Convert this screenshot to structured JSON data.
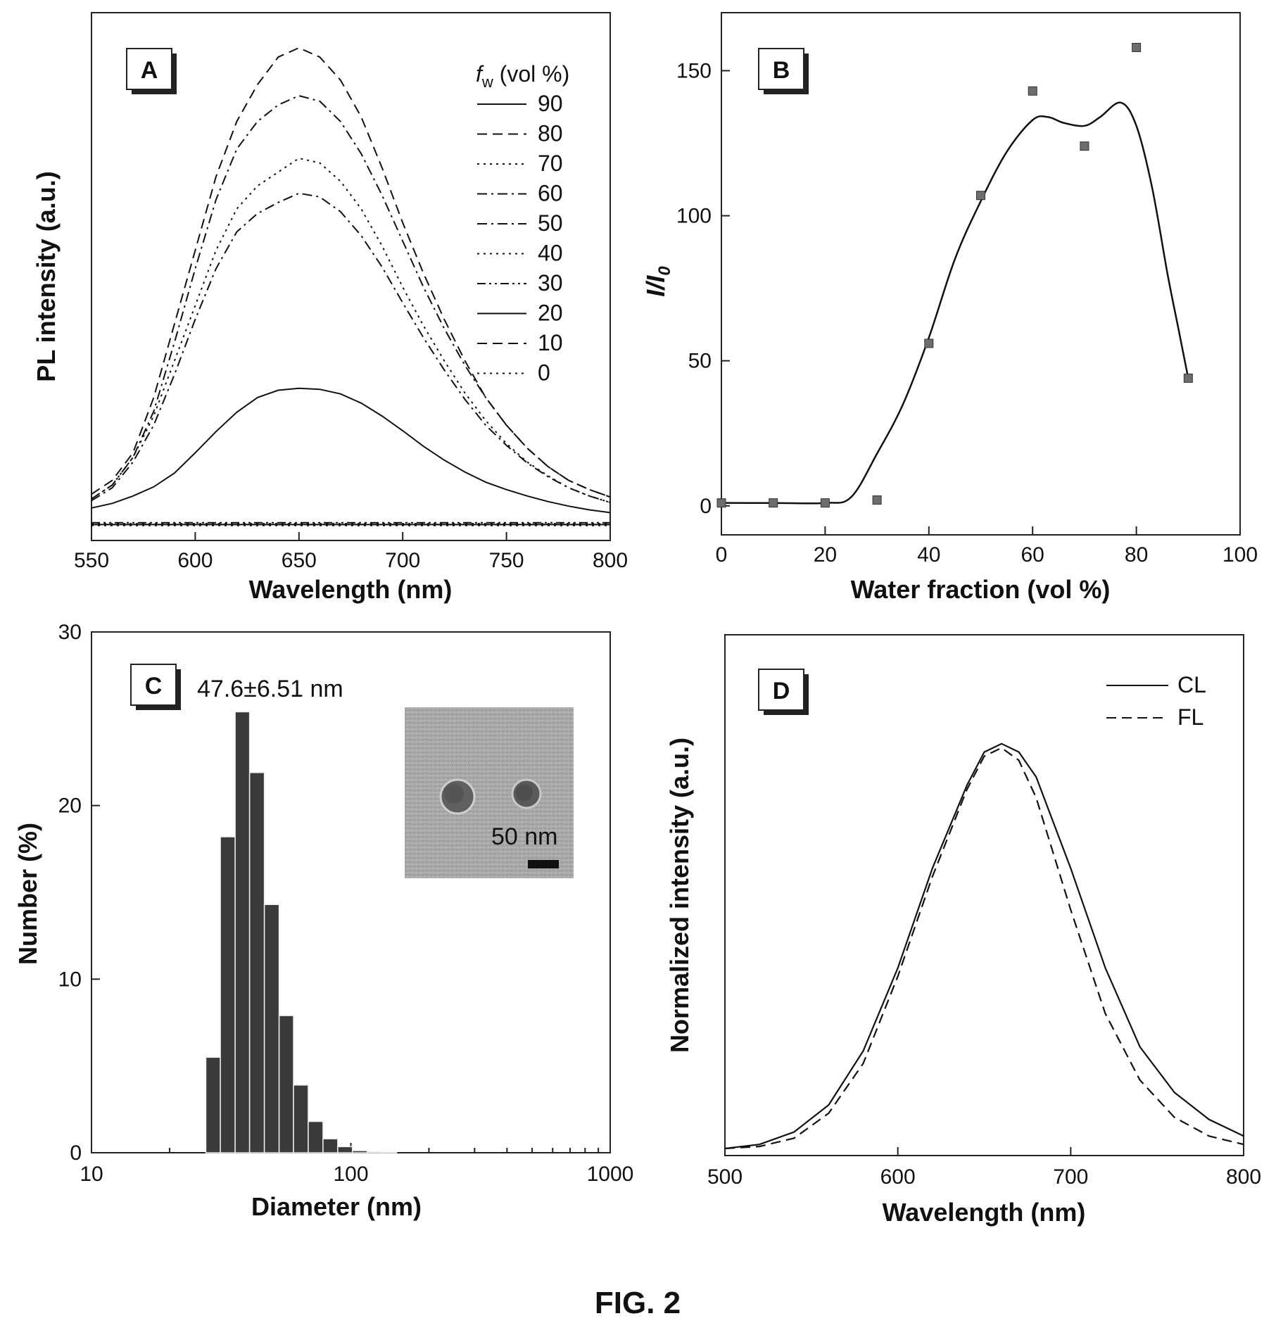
{
  "figure_caption": "FIG. 2",
  "chart_data": [
    {
      "panel": "A",
      "type": "line",
      "xlabel": "Wavelength (nm)",
      "ylabel": "PL intensity (a.u.)",
      "xlim": [
        550,
        800
      ],
      "xticks": [
        "550",
        "600",
        "650",
        "700",
        "750",
        "800"
      ],
      "legend_title": "f_w (vol %)",
      "legend_title_parts": {
        "f": "f",
        "sub": "w",
        "rest": " (vol %)"
      },
      "legend_position": "top-right",
      "x": [
        550,
        560,
        570,
        580,
        590,
        600,
        610,
        620,
        630,
        640,
        650,
        660,
        670,
        680,
        690,
        700,
        710,
        720,
        730,
        740,
        750,
        760,
        770,
        780,
        790,
        800
      ],
      "series": [
        {
          "name": "90",
          "style": "solid",
          "values": [
            0.02,
            0.025,
            0.033,
            0.043,
            0.058,
            0.08,
            0.103,
            0.124,
            0.14,
            0.148,
            0.15,
            0.149,
            0.144,
            0.134,
            0.12,
            0.104,
            0.087,
            0.072,
            0.059,
            0.048,
            0.04,
            0.033,
            0.027,
            0.022,
            0.018,
            0.015
          ]
        },
        {
          "name": "80",
          "style": "dashed",
          "values": [
            0.035,
            0.05,
            0.08,
            0.14,
            0.22,
            0.3,
            0.38,
            0.44,
            0.48,
            0.51,
            0.52,
            0.51,
            0.485,
            0.445,
            0.39,
            0.33,
            0.275,
            0.225,
            0.18,
            0.14,
            0.11,
            0.085,
            0.065,
            0.05,
            0.04,
            0.032
          ]
        },
        {
          "name": "70",
          "style": "dotted",
          "values": [
            0.03,
            0.045,
            0.075,
            0.12,
            0.18,
            0.24,
            0.3,
            0.345,
            0.37,
            0.385,
            0.4,
            0.395,
            0.375,
            0.345,
            0.305,
            0.26,
            0.218,
            0.18,
            0.145,
            0.115,
            0.09,
            0.07,
            0.055,
            0.042,
            0.033,
            0.026
          ]
        },
        {
          "name": "60",
          "style": "dashdot",
          "values": [
            0.03,
            0.045,
            0.075,
            0.125,
            0.2,
            0.28,
            0.355,
            0.41,
            0.44,
            0.458,
            0.468,
            0.462,
            0.44,
            0.405,
            0.36,
            0.31,
            0.26,
            0.215,
            0.175,
            0.14,
            0.11,
            0.085,
            0.065,
            0.05,
            0.04,
            0.032
          ]
        },
        {
          "name": "50",
          "style": "dashdot",
          "values": [
            0.028,
            0.042,
            0.07,
            0.11,
            0.165,
            0.225,
            0.28,
            0.32,
            0.34,
            0.352,
            0.362,
            0.358,
            0.342,
            0.316,
            0.282,
            0.243,
            0.205,
            0.17,
            0.138,
            0.11,
            0.088,
            0.069,
            0.054,
            0.042,
            0.033,
            0.026
          ]
        },
        {
          "name": "40",
          "style": "dotted",
          "values": [
            0.003,
            0.003,
            0.003,
            0.003,
            0.003,
            0.003,
            0.003,
            0.003,
            0.003,
            0.003,
            0.003,
            0.003,
            0.003,
            0.003,
            0.003,
            0.003,
            0.003,
            0.003,
            0.003,
            0.003,
            0.003,
            0.003,
            0.003,
            0.003,
            0.003,
            0.003
          ]
        },
        {
          "name": "30",
          "style": "dashdotdot",
          "values": [
            0.004,
            0.004,
            0.004,
            0.004,
            0.004,
            0.004,
            0.004,
            0.004,
            0.004,
            0.004,
            0.004,
            0.004,
            0.004,
            0.004,
            0.004,
            0.004,
            0.004,
            0.004,
            0.004,
            0.004,
            0.004,
            0.004,
            0.004,
            0.004,
            0.004,
            0.004
          ]
        },
        {
          "name": "20",
          "style": "solid",
          "values": [
            0.002,
            0.002,
            0.002,
            0.002,
            0.002,
            0.002,
            0.002,
            0.002,
            0.002,
            0.002,
            0.002,
            0.002,
            0.002,
            0.002,
            0.002,
            0.002,
            0.002,
            0.002,
            0.002,
            0.002,
            0.002,
            0.002,
            0.002,
            0.002,
            0.002,
            0.002
          ]
        },
        {
          "name": "10",
          "style": "dashed",
          "values": [
            0.002,
            0.002,
            0.002,
            0.002,
            0.002,
            0.002,
            0.002,
            0.002,
            0.002,
            0.002,
            0.002,
            0.002,
            0.002,
            0.002,
            0.002,
            0.002,
            0.002,
            0.002,
            0.002,
            0.002,
            0.002,
            0.002,
            0.002,
            0.002,
            0.002,
            0.002
          ]
        },
        {
          "name": "0",
          "style": "dotted",
          "values": [
            0.001,
            0.001,
            0.001,
            0.001,
            0.001,
            0.001,
            0.001,
            0.001,
            0.001,
            0.001,
            0.001,
            0.001,
            0.001,
            0.001,
            0.001,
            0.001,
            0.001,
            0.001,
            0.001,
            0.001,
            0.001,
            0.001,
            0.001,
            0.001,
            0.001,
            0.001
          ]
        }
      ]
    },
    {
      "panel": "B",
      "type": "scatter",
      "xlabel": "Water fraction (vol %)",
      "ylabel": "I/I0",
      "ylabel_parts": {
        "main": "I/I",
        "sub": "0"
      },
      "xlim": [
        0,
        100
      ],
      "ylim": [
        -10,
        170
      ],
      "xticks": [
        "0",
        "20",
        "40",
        "60",
        "80",
        "100"
      ],
      "yticks": [
        "0",
        "50",
        "100",
        "150"
      ],
      "points": {
        "x": [
          0,
          10,
          20,
          30,
          40,
          50,
          60,
          70,
          80,
          90
        ],
        "y": [
          1,
          1,
          1,
          2,
          56,
          107,
          143,
          124,
          158,
          44
        ]
      },
      "fit": {
        "x": [
          0,
          10,
          20,
          25,
          30,
          35,
          40,
          45,
          50,
          55,
          60,
          63,
          66,
          70,
          73,
          77,
          80,
          83,
          86,
          88,
          90
        ],
        "y": [
          1,
          1,
          1,
          3,
          18,
          35,
          58,
          85,
          105,
          122,
          133,
          134,
          132,
          131,
          134,
          139,
          131,
          110,
          80,
          62,
          44
        ]
      }
    },
    {
      "panel": "C",
      "type": "bar",
      "xlabel": "Diameter (nm)",
      "ylabel": "Number (%)",
      "xscale": "log",
      "xlim": [
        10,
        1000
      ],
      "ylim": [
        0,
        30
      ],
      "xticks": [
        "10",
        "100",
        "1000"
      ],
      "yticks": [
        "0",
        "10",
        "20",
        "30"
      ],
      "annotation": "47.6±6.51 nm",
      "inset_scale_label": "50 nm",
      "bins": [
        {
          "lo": 27.6,
          "hi": 31.4,
          "value": 5.5
        },
        {
          "lo": 31.4,
          "hi": 35.8,
          "value": 18.2
        },
        {
          "lo": 35.8,
          "hi": 40.7,
          "value": 25.4
        },
        {
          "lo": 40.7,
          "hi": 46.4,
          "value": 21.9
        },
        {
          "lo": 46.4,
          "hi": 52.9,
          "value": 14.3
        },
        {
          "lo": 52.9,
          "hi": 60.1,
          "value": 7.9
        },
        {
          "lo": 60.1,
          "hi": 68.5,
          "value": 3.9
        },
        {
          "lo": 68.5,
          "hi": 78.1,
          "value": 1.8
        },
        {
          "lo": 78.1,
          "hi": 89.0,
          "value": 0.8
        },
        {
          "lo": 89.0,
          "hi": 101.4,
          "value": 0.35
        },
        {
          "lo": 101.4,
          "hi": 115.6,
          "value": 0.12
        },
        {
          "lo": 115.6,
          "hi": 131.8,
          "value": 0.05
        },
        {
          "lo": 131.8,
          "hi": 150.2,
          "value": 0.02
        }
      ]
    },
    {
      "panel": "D",
      "type": "line",
      "xlabel": "Wavelength (nm)",
      "ylabel": "Normalized intensity (a.u.)",
      "xlim": [
        500,
        800
      ],
      "xticks": [
        "500",
        "600",
        "700",
        "800"
      ],
      "legend_position": "top-right",
      "x": [
        500,
        520,
        540,
        560,
        580,
        600,
        620,
        640,
        650,
        660,
        670,
        680,
        700,
        720,
        740,
        760,
        780,
        800
      ],
      "series": [
        {
          "name": "CL",
          "style": "solid",
          "values": [
            0.005,
            0.015,
            0.045,
            0.11,
            0.24,
            0.44,
            0.68,
            0.88,
            0.96,
            0.98,
            0.96,
            0.9,
            0.68,
            0.44,
            0.25,
            0.14,
            0.075,
            0.035
          ]
        },
        {
          "name": "FL",
          "style": "dashed",
          "values": [
            0.005,
            0.01,
            0.03,
            0.09,
            0.21,
            0.42,
            0.66,
            0.87,
            0.95,
            0.97,
            0.94,
            0.85,
            0.58,
            0.33,
            0.17,
            0.08,
            0.035,
            0.015
          ]
        }
      ]
    }
  ]
}
